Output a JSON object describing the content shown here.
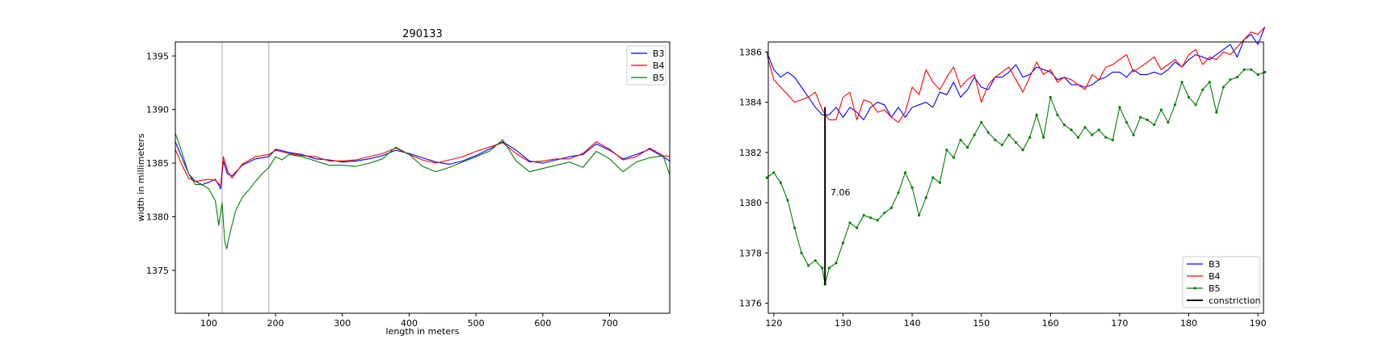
{
  "chart_data": [
    {
      "type": "line",
      "title": "290133",
      "xlabel": "length in meters",
      "ylabel": "width in millimeters",
      "xlim": [
        50,
        790
      ],
      "ylim": [
        1371,
        1396.3
      ],
      "xticks": [
        100,
        200,
        300,
        400,
        500,
        600,
        700
      ],
      "yticks": [
        1375,
        1380,
        1385,
        1390,
        1395
      ],
      "vlines": [
        120,
        190
      ],
      "legend_position": "top-right",
      "grid": false,
      "series": [
        {
          "name": "B3",
          "color": "#0000ff",
          "x": [
            50,
            60,
            70,
            80,
            90,
            100,
            110,
            118,
            122,
            128,
            135,
            150,
            170,
            190,
            200,
            220,
            240,
            260,
            280,
            300,
            320,
            340,
            360,
            380,
            400,
            420,
            440,
            460,
            480,
            500,
            520,
            540,
            560,
            580,
            600,
            620,
            640,
            660,
            680,
            700,
            720,
            740,
            760,
            780,
            790
          ],
          "y": [
            1387,
            1385.5,
            1384,
            1383.3,
            1383,
            1383.2,
            1383.5,
            1382.6,
            1385.2,
            1384,
            1383.8,
            1384.8,
            1385.4,
            1385.6,
            1386.3,
            1386,
            1385.8,
            1385.4,
            1385.3,
            1385.1,
            1385.2,
            1385.4,
            1385.7,
            1386.2,
            1385.9,
            1385.5,
            1385.1,
            1384.9,
            1385.2,
            1385.7,
            1386.3,
            1387,
            1386.2,
            1385.2,
            1385,
            1385.3,
            1385.6,
            1385.8,
            1386.8,
            1386.2,
            1385.4,
            1385.8,
            1386.3,
            1385.6,
            1385.2
          ]
        },
        {
          "name": "B4",
          "color": "#ff0000",
          "x": [
            50,
            60,
            70,
            80,
            90,
            100,
            110,
            118,
            122,
            128,
            135,
            150,
            170,
            190,
            200,
            220,
            240,
            260,
            280,
            300,
            320,
            340,
            360,
            380,
            400,
            420,
            440,
            460,
            480,
            500,
            520,
            540,
            560,
            580,
            600,
            620,
            640,
            660,
            680,
            700,
            720,
            740,
            760,
            780,
            790
          ],
          "y": [
            1386.3,
            1384.8,
            1383.6,
            1383.3,
            1383.4,
            1383.5,
            1383.4,
            1382.9,
            1385.6,
            1384.3,
            1383.6,
            1384.9,
            1385.6,
            1385.8,
            1386.2,
            1385.9,
            1385.7,
            1385.6,
            1385.2,
            1385.2,
            1385.3,
            1385.6,
            1385.9,
            1386.4,
            1385.8,
            1385.3,
            1385,
            1385.3,
            1385.6,
            1386.1,
            1386.5,
            1386.9,
            1385.9,
            1385.1,
            1385.2,
            1385.4,
            1385.4,
            1385.9,
            1387,
            1386.3,
            1385.3,
            1385.6,
            1386.4,
            1385.7,
            1385.6
          ]
        },
        {
          "name": "B5",
          "color": "#008000",
          "x": [
            50,
            60,
            70,
            80,
            90,
            100,
            110,
            115,
            120,
            124,
            127,
            130,
            140,
            150,
            160,
            170,
            180,
            190,
            200,
            210,
            220,
            240,
            260,
            280,
            300,
            320,
            340,
            360,
            380,
            400,
            420,
            440,
            460,
            480,
            500,
            520,
            540,
            560,
            580,
            600,
            620,
            640,
            660,
            680,
            700,
            720,
            740,
            760,
            780,
            790
          ],
          "y": [
            1387.8,
            1386,
            1384,
            1383,
            1383,
            1382.6,
            1381.5,
            1379.2,
            1381.3,
            1377.7,
            1377,
            1378,
            1380.5,
            1381.8,
            1382.5,
            1383.3,
            1384,
            1384.6,
            1385.6,
            1385.3,
            1385.8,
            1385.6,
            1385.2,
            1384.8,
            1384.8,
            1384.7,
            1385,
            1385.4,
            1386.5,
            1385.8,
            1384.7,
            1384.2,
            1384.6,
            1385.1,
            1385.6,
            1386.1,
            1387.2,
            1385.2,
            1384.2,
            1384.5,
            1384.8,
            1385.1,
            1384.6,
            1386.1,
            1385.4,
            1384.2,
            1385.1,
            1385.5,
            1385.7,
            1383.9
          ]
        }
      ],
      "legend": [
        "B3",
        "B4",
        "B5"
      ]
    },
    {
      "type": "line",
      "title": "",
      "xlabel": "",
      "ylabel": "",
      "xlim": [
        119.2,
        190.8
      ],
      "ylim": [
        1375.6,
        1386.4
      ],
      "xticks": [
        120,
        130,
        140,
        150,
        160,
        170,
        180,
        190
      ],
      "yticks": [
        1376,
        1378,
        1380,
        1382,
        1384,
        1386
      ],
      "legend_position": "lower-right",
      "grid": false,
      "annotation": {
        "text": "7.06",
        "x": 128.2,
        "y": 1380.3
      },
      "constriction": {
        "name": "constriction",
        "color": "#000000",
        "x": 127.4,
        "y0": 1376.75,
        "y1": 1383.81
      },
      "series": [
        {
          "name": "B3",
          "color": "#0000ff",
          "x": [
            119,
            120,
            121,
            122,
            123,
            124,
            125,
            126,
            127,
            128,
            129,
            130,
            131,
            132,
            133,
            134,
            135,
            136,
            137,
            138,
            139,
            140,
            141,
            142,
            143,
            144,
            145,
            146,
            147,
            148,
            149,
            150,
            151,
            152,
            153,
            154,
            155,
            156,
            157,
            158,
            159,
            160,
            161,
            162,
            163,
            164,
            165,
            166,
            167,
            168,
            169,
            170,
            171,
            172,
            173,
            174,
            175,
            176,
            177,
            178,
            179,
            180,
            181,
            182,
            183,
            184,
            185,
            186,
            187,
            188,
            189,
            190,
            191
          ],
          "y": [
            1386,
            1385.3,
            1385,
            1385.2,
            1385,
            1384.6,
            1384.2,
            1383.8,
            1383.5,
            1383.5,
            1383.8,
            1383.4,
            1383.8,
            1383.6,
            1383.3,
            1383.8,
            1384,
            1383.9,
            1383.4,
            1383.8,
            1383.4,
            1383.8,
            1383.9,
            1384,
            1383.8,
            1384.4,
            1384.3,
            1384.8,
            1384.2,
            1384.5,
            1385,
            1384.6,
            1384.5,
            1385,
            1385,
            1385.2,
            1385.5,
            1385,
            1385.1,
            1385.4,
            1385.3,
            1385.2,
            1384.9,
            1385,
            1384.7,
            1384.7,
            1384.6,
            1384.7,
            1384.9,
            1385,
            1385.2,
            1385.2,
            1385,
            1385.3,
            1385.1,
            1385.1,
            1385.2,
            1385.1,
            1385.3,
            1385.6,
            1385.4,
            1385.7,
            1385.9,
            1385.8,
            1385.7,
            1385.9,
            1386.1,
            1386.3,
            1385.8,
            1386.5,
            1386.7,
            1386.3,
            1387
          ]
        },
        {
          "name": "B4",
          "color": "#ff0000",
          "x": [
            119,
            120,
            121,
            122,
            123,
            124,
            125,
            126,
            127,
            128,
            129,
            130,
            131,
            132,
            133,
            134,
            135,
            136,
            137,
            138,
            139,
            140,
            141,
            142,
            143,
            144,
            145,
            146,
            147,
            148,
            149,
            150,
            151,
            152,
            153,
            154,
            155,
            156,
            157,
            158,
            159,
            160,
            161,
            162,
            163,
            164,
            165,
            166,
            167,
            168,
            169,
            170,
            171,
            172,
            173,
            174,
            175,
            176,
            177,
            178,
            179,
            180,
            181,
            182,
            183,
            184,
            185,
            186,
            187,
            188,
            189,
            190,
            191
          ],
          "y": [
            1385.9,
            1384.9,
            1384.6,
            1384.3,
            1384,
            1384.1,
            1384.2,
            1384.4,
            1383.7,
            1383.3,
            1383.3,
            1384.2,
            1384.4,
            1383.3,
            1384.1,
            1384,
            1383.6,
            1383.7,
            1383.4,
            1383.2,
            1383.6,
            1384.6,
            1384.3,
            1385.3,
            1384.8,
            1384.5,
            1385,
            1385.4,
            1384.6,
            1384.9,
            1385.1,
            1384,
            1384.7,
            1385,
            1385.2,
            1385.4,
            1384.9,
            1384.4,
            1385,
            1385.6,
            1385.1,
            1385.3,
            1384.8,
            1385,
            1384.9,
            1384.7,
            1384.5,
            1385.1,
            1384.9,
            1385.4,
            1385.5,
            1385.7,
            1385.9,
            1385.2,
            1385.4,
            1385.6,
            1385.8,
            1385.3,
            1385.5,
            1385.7,
            1385.4,
            1385.9,
            1386.1,
            1385.5,
            1385.8,
            1385.7,
            1386,
            1385.9,
            1386.2,
            1386.5,
            1386.8,
            1386.7,
            1387
          ]
        },
        {
          "name": "B5",
          "color": "#008000",
          "x": [
            119,
            120,
            121,
            122,
            123,
            124,
            125,
            126,
            127,
            127.4,
            128,
            129,
            130,
            131,
            132,
            133,
            134,
            135,
            136,
            137,
            138,
            139,
            140,
            141,
            142,
            143,
            144,
            145,
            146,
            147,
            148,
            149,
            150,
            151,
            152,
            153,
            154,
            155,
            156,
            157,
            158,
            159,
            160,
            161,
            162,
            163,
            164,
            165,
            166,
            167,
            168,
            169,
            170,
            171,
            172,
            173,
            174,
            175,
            176,
            177,
            178,
            179,
            180,
            181,
            182,
            183,
            184,
            185,
            186,
            187,
            188,
            189,
            190,
            191
          ],
          "y": [
            1381,
            1381.2,
            1380.8,
            1380.1,
            1379,
            1378,
            1377.5,
            1377.7,
            1377.4,
            1376.75,
            1377.4,
            1377.6,
            1378.4,
            1379.2,
            1379,
            1379.5,
            1379.4,
            1379.3,
            1379.6,
            1379.8,
            1380.4,
            1381.2,
            1380.6,
            1379.5,
            1380.2,
            1381,
            1380.8,
            1382.1,
            1381.8,
            1382.5,
            1382.2,
            1382.7,
            1383.2,
            1382.8,
            1382.5,
            1382.3,
            1382.7,
            1382.4,
            1382.1,
            1382.6,
            1383.5,
            1382.6,
            1384.2,
            1383.5,
            1383.1,
            1382.9,
            1382.6,
            1383,
            1382.7,
            1382.9,
            1382.6,
            1382.5,
            1383.8,
            1383.2,
            1382.7,
            1383.4,
            1383.3,
            1383.1,
            1383.7,
            1383.2,
            1383.9,
            1384.8,
            1384.2,
            1383.9,
            1384.5,
            1384.8,
            1383.6,
            1384.6,
            1384.9,
            1385,
            1385.3,
            1385.3,
            1385.1,
            1385.2
          ]
        }
      ],
      "legend": [
        "B3",
        "B4",
        "B5",
        "constriction"
      ]
    }
  ]
}
